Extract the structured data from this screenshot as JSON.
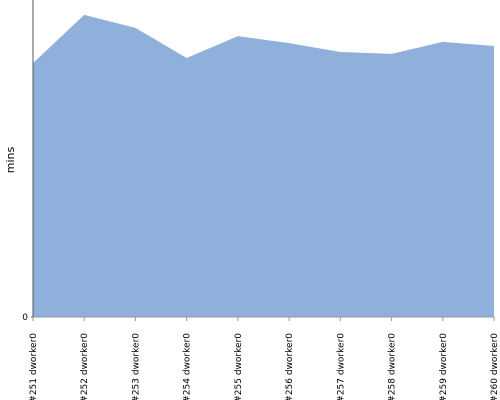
{
  "chart_data": {
    "type": "area",
    "y_label": "mins",
    "categories": [
      "#251 dworker0",
      "#252 dworker0",
      "#253 dworker0",
      "#254 dworker0",
      "#255 dworker0",
      "#256 dworker0",
      "#257 dworker0",
      "#258 dworker0",
      "#259 dworker0",
      "#260 dworker0"
    ],
    "values": [
      80.1,
      95.3,
      91.2,
      81.7,
      88.6,
      86.4,
      83.6,
      83.0,
      86.8,
      85.5
    ],
    "color": "#8fb0da",
    "ylim": [
      0,
      100
    ],
    "yticks": [
      0
    ]
  }
}
